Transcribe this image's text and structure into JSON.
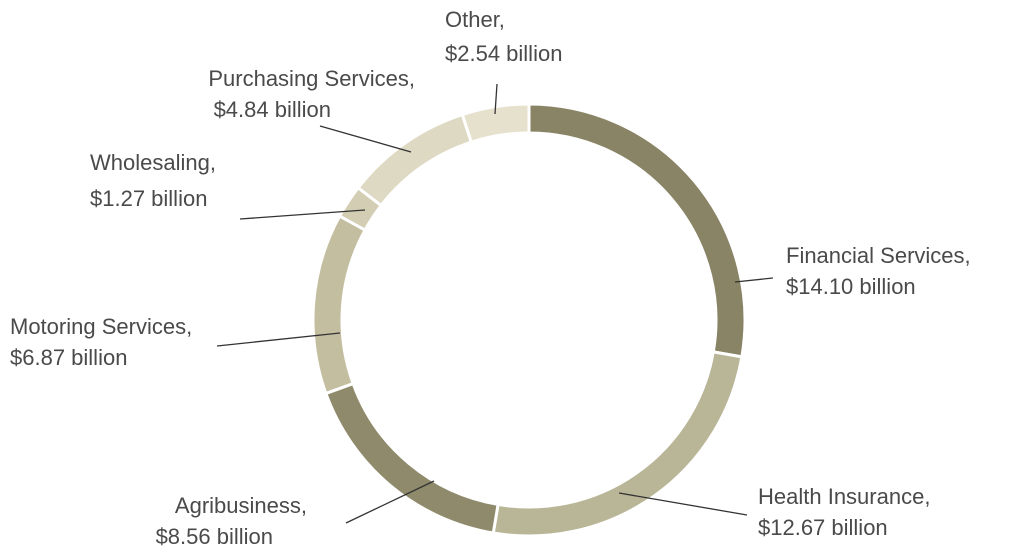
{
  "chart_data": {
    "type": "pie",
    "style": "donut",
    "title": "",
    "slices": [
      {
        "label": "Financial Services",
        "value": 14.1,
        "display": "$14.10 billion",
        "color": "#8a8466"
      },
      {
        "label": "Health Insurance",
        "value": 12.67,
        "display": "$12.67 billion",
        "color": "#b9b597"
      },
      {
        "label": "Agribusiness",
        "value": 8.56,
        "display": "$8.56 billion",
        "color": "#8e8a6b"
      },
      {
        "label": "Motoring Services",
        "value": 6.87,
        "display": "$6.87 billion",
        "color": "#c3bea0"
      },
      {
        "label": "Wholesaling",
        "value": 1.27,
        "display": "$1.27 billion",
        "color": "#d2cdb3"
      },
      {
        "label": "Purchasing Services",
        "value": 4.84,
        "display": "$4.84 billion",
        "color": "#ded9c3"
      },
      {
        "label": "Other",
        "value": 2.54,
        "display": "$2.54 billion",
        "color": "#e6e1cd"
      }
    ],
    "units": "billion"
  }
}
